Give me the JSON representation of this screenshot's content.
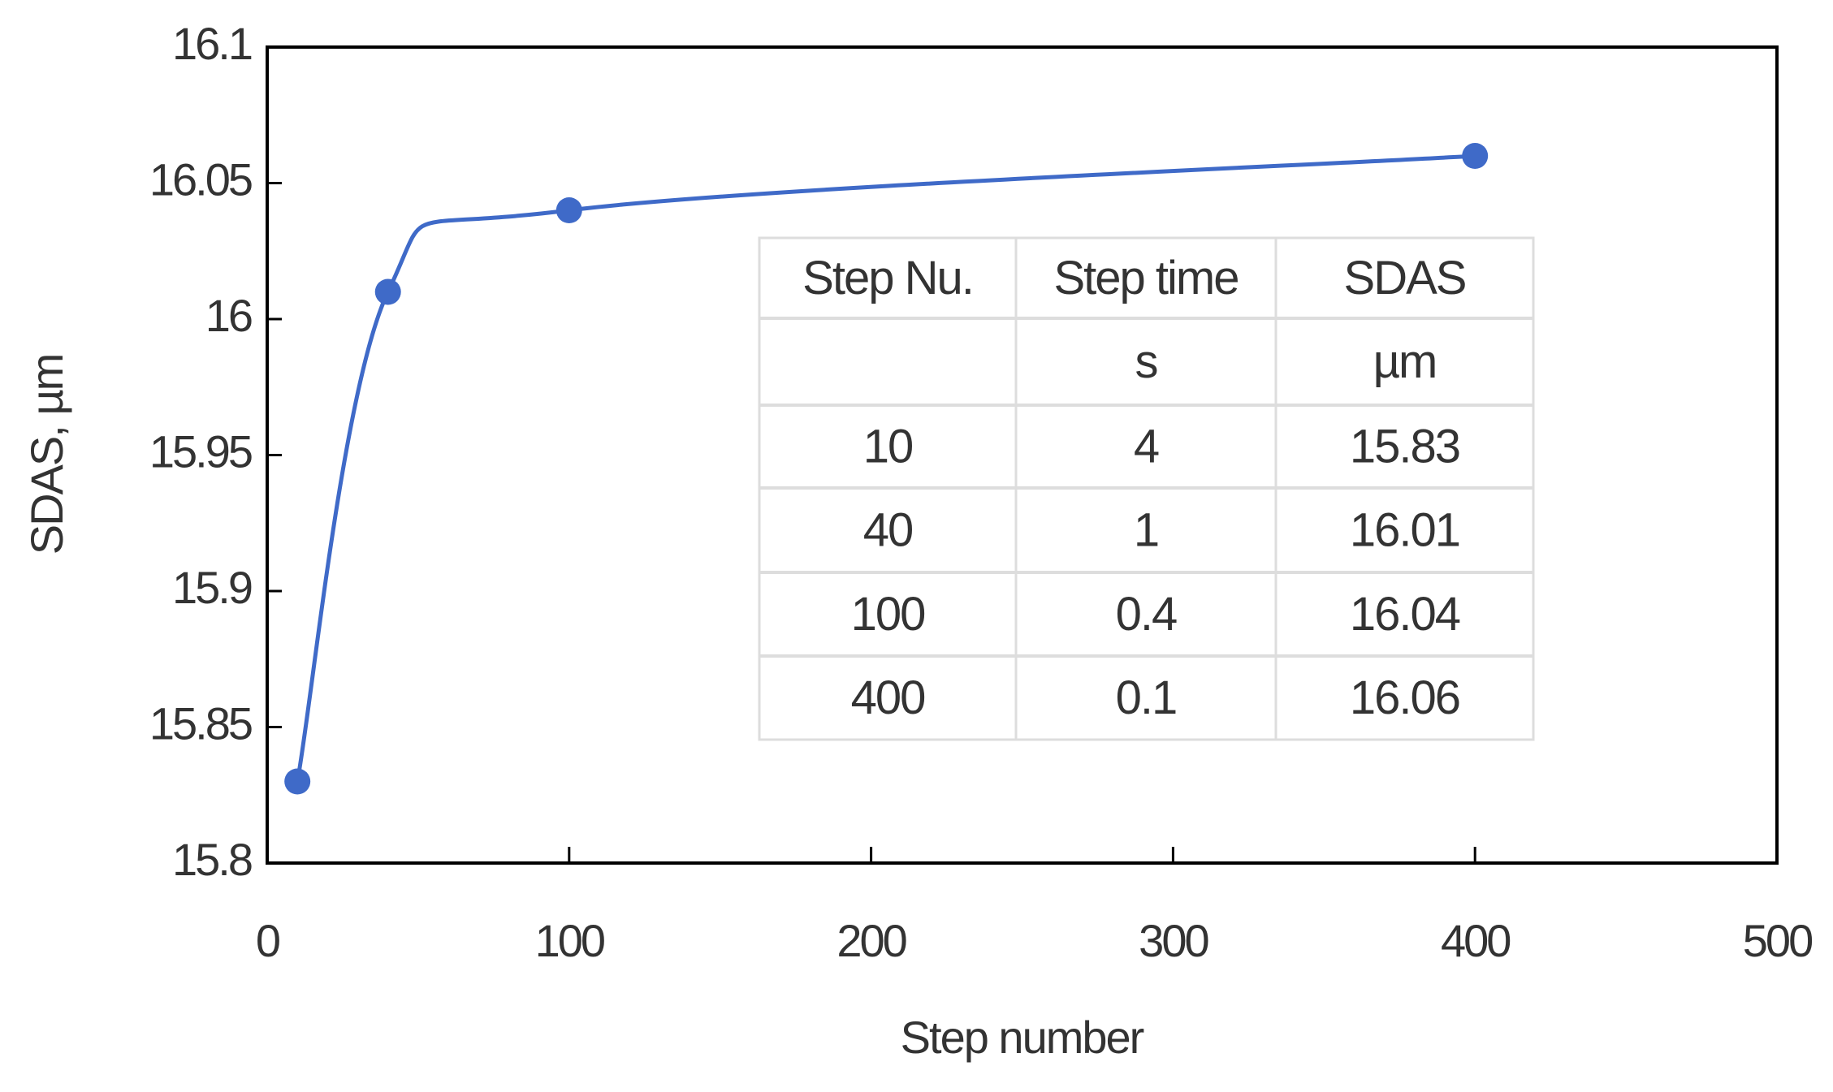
{
  "chart_data": {
    "type": "line",
    "x_label": "Step number",
    "y_label": "SDAS, µm",
    "x": [
      10,
      40,
      100,
      400
    ],
    "values": [
      15.83,
      16.01,
      16.04,
      16.06
    ],
    "color": "#3f6ac8",
    "smooth": true,
    "markers": true,
    "xlim": [
      0,
      500
    ],
    "xticks": [
      0,
      100,
      200,
      300,
      400,
      500
    ],
    "ylim": [
      15.8,
      16.1
    ],
    "yticks": [
      15.8,
      15.85,
      15.9,
      15.95,
      16,
      16.05,
      16.1
    ],
    "grid": false
  },
  "table": {
    "header": [
      "Step Nu.",
      "Step time",
      "SDAS"
    ],
    "units": [
      null,
      "s",
      "µm"
    ],
    "rows": [
      [
        10,
        4,
        15.83
      ],
      [
        40,
        1,
        16.01
      ],
      [
        100,
        0.4,
        16.04
      ],
      [
        400,
        0.1,
        16.06
      ]
    ]
  }
}
